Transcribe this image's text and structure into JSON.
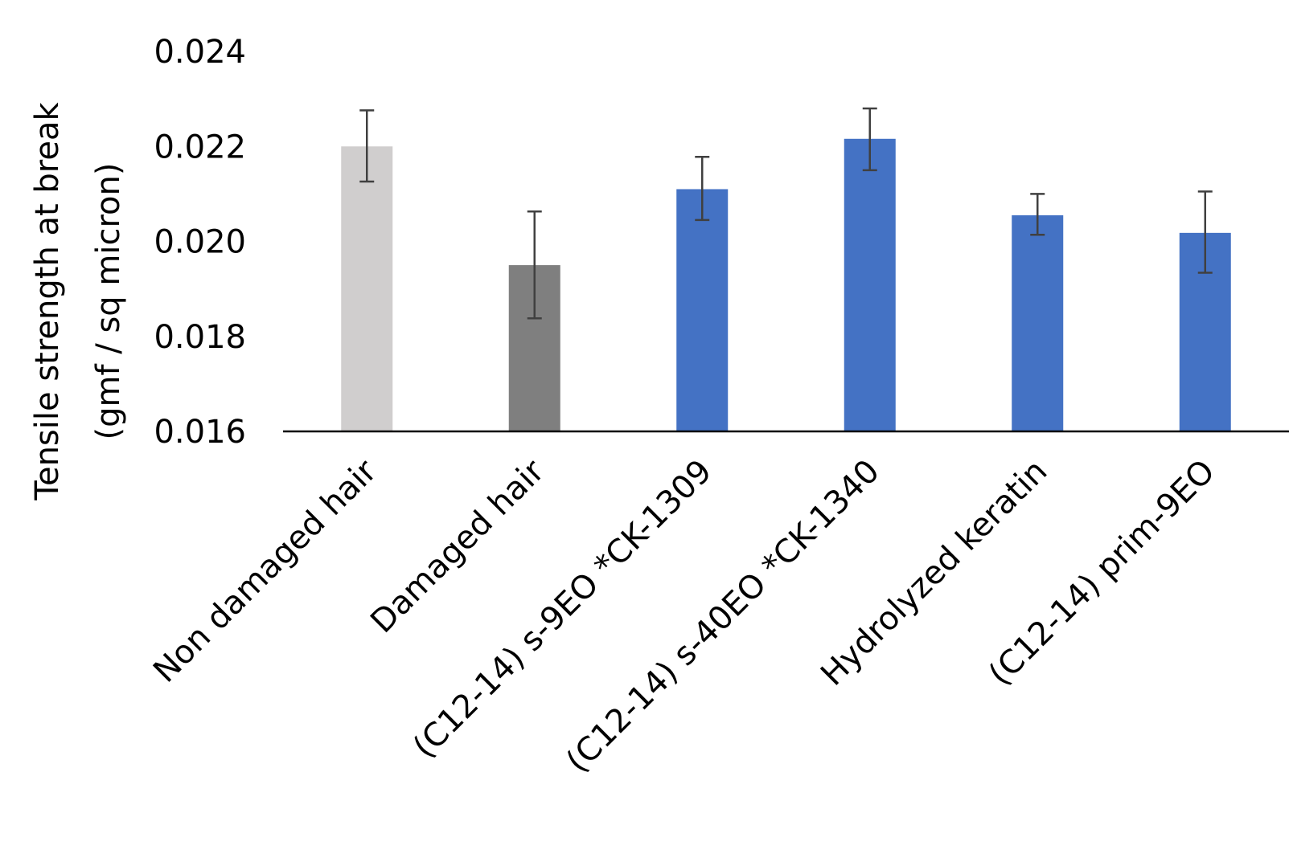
{
  "chart_data": {
    "type": "bar",
    "title": "",
    "xlabel": "",
    "ylabel_line1": "Tensile strength at break",
    "ylabel_line2": "(gmf / sq micron)",
    "ylim": [
      0.016,
      0.024
    ],
    "yticks": [
      "0.016",
      "0.018",
      "0.020",
      "0.022",
      "0.024"
    ],
    "grid": false,
    "legend": "none",
    "categories": [
      "Non damaged hair",
      "Damaged hair",
      "(C12-14) s-9EO *CK-1309",
      "(C12-14) s-40EO *CK-1340",
      "Hydrolyzed keratin",
      "(C12-14) prim-9EO"
    ],
    "values": [
      0.022,
      0.0195,
      0.0211,
      0.02216,
      0.02055,
      0.02018
    ],
    "error_bars": [
      [
        0.02126,
        0.02276
      ],
      [
        0.01838,
        0.02063
      ],
      [
        0.02045,
        0.02178
      ],
      [
        0.0215,
        0.0228
      ],
      [
        0.02014,
        0.021
      ],
      [
        0.01934,
        0.02105
      ]
    ],
    "bar_colors": [
      "#d0cece",
      "#7f7f7f",
      "#4472c4",
      "#4472c4",
      "#4472c4",
      "#4472c4"
    ],
    "error_bar_color": "#404040",
    "axis_color": "#000000"
  }
}
